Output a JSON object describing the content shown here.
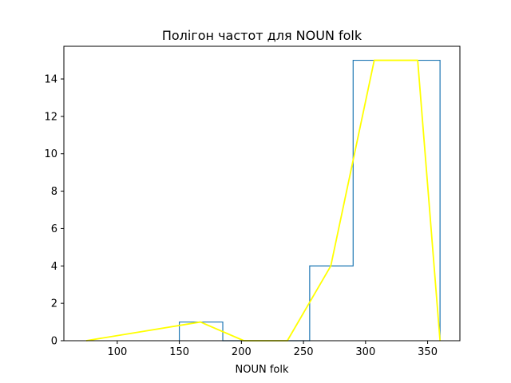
{
  "chart_data": {
    "type": "histogram-with-frequency-polygon",
    "title": "Полігон частот для NOUN folk",
    "xlabel": "NOUN folk",
    "ylabel": "",
    "xlim": [
      57,
      376
    ],
    "ylim": [
      0,
      15.75
    ],
    "xticks": [
      100,
      150,
      200,
      250,
      300,
      350
    ],
    "yticks": [
      0,
      2,
      4,
      6,
      8,
      10,
      12,
      14
    ],
    "grid": false,
    "histogram": {
      "color": "#1f77b4",
      "bins": [
        {
          "x0": 150,
          "x1": 185,
          "count": 1
        },
        {
          "x0": 185,
          "x1": 220,
          "count": 0
        },
        {
          "x0": 220,
          "x1": 255,
          "count": 0
        },
        {
          "x0": 255,
          "x1": 290,
          "count": 4
        },
        {
          "x0": 290,
          "x1": 325,
          "count": 15
        },
        {
          "x0": 325,
          "x1": 360,
          "count": 15
        }
      ]
    },
    "polygon": {
      "color": "#ffff00",
      "points": [
        {
          "x": 75,
          "y": 0
        },
        {
          "x": 167,
          "y": 1
        },
        {
          "x": 202,
          "y": 0
        },
        {
          "x": 237,
          "y": 0
        },
        {
          "x": 272,
          "y": 4
        },
        {
          "x": 307,
          "y": 15
        },
        {
          "x": 342,
          "y": 15
        },
        {
          "x": 360,
          "y": 0
        }
      ]
    }
  }
}
